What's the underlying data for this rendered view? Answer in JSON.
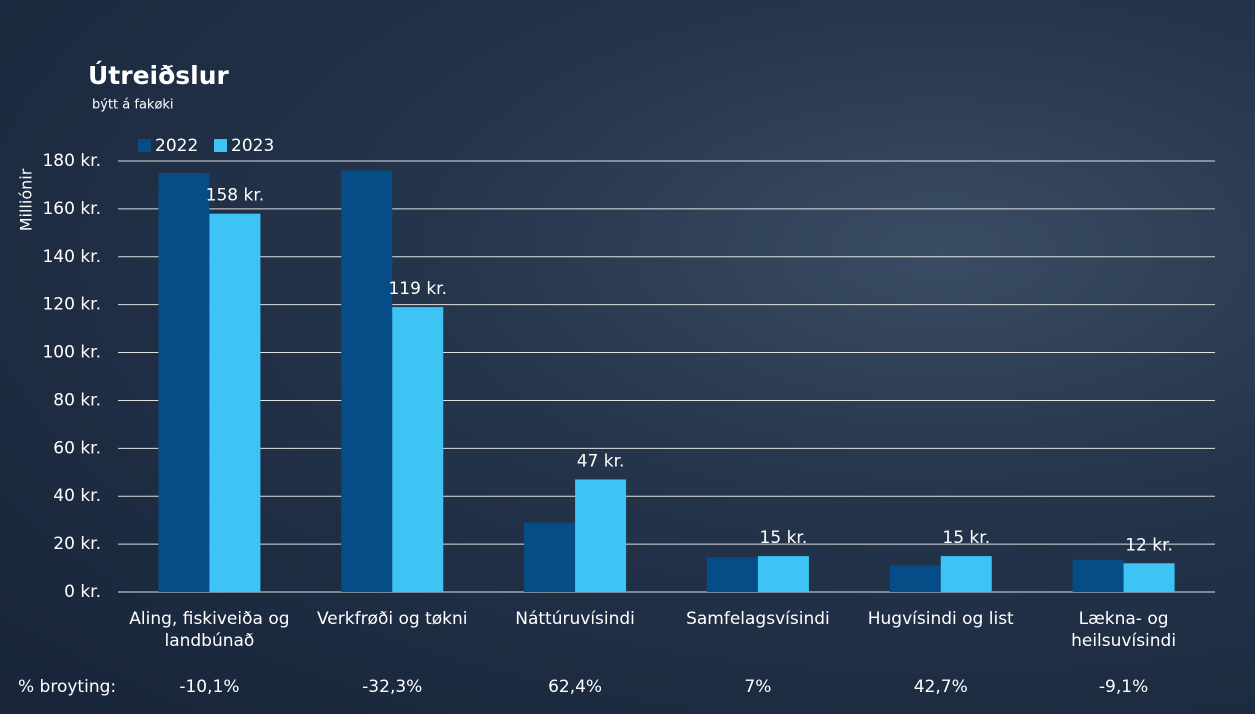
{
  "chart_data": {
    "type": "bar",
    "title": "Útreiðslur",
    "subtitle": "býtt á fakøki",
    "y_axis_label": "Milliónir",
    "categories": [
      "Aling, fiskiveiða og landbúnað",
      "Verkfrøði og tøkni",
      "Náttúruvísindi",
      "Samfelagsvísindi",
      "Hugvísindi og list",
      "Lækna- og heilsuvísindi"
    ],
    "series": [
      {
        "name": "2022",
        "color": "#064d87",
        "values": [
          175,
          176,
          29,
          14.5,
          11,
          13.5
        ]
      },
      {
        "name": "2023",
        "color": "#3ec3f5",
        "values": [
          158,
          119,
          47,
          15,
          15,
          12
        ],
        "value_labels": [
          "158 kr.",
          "119 kr.",
          "47 kr.",
          "15 kr.",
          "15 kr.",
          "12 kr."
        ]
      }
    ],
    "ylim": [
      0,
      180
    ],
    "yticks": [
      {
        "value": 0,
        "label": "0 kr."
      },
      {
        "value": 20,
        "label": "20 kr."
      },
      {
        "value": 40,
        "label": "40 kr."
      },
      {
        "value": 60,
        "label": "60 kr."
      },
      {
        "value": 80,
        "label": "80 kr."
      },
      {
        "value": 100,
        "label": "100 kr."
      },
      {
        "value": 120,
        "label": "120 kr."
      },
      {
        "value": 140,
        "label": "140 kr."
      },
      {
        "value": 160,
        "label": "160 kr."
      },
      {
        "value": 180,
        "label": "180 kr."
      }
    ],
    "grid": true,
    "legend": "top-left",
    "change_label": "% broyting:",
    "changes": [
      "-10,1%",
      "-32,3%",
      "62,4%",
      "7%",
      "42,7%",
      "-9,1%"
    ]
  }
}
